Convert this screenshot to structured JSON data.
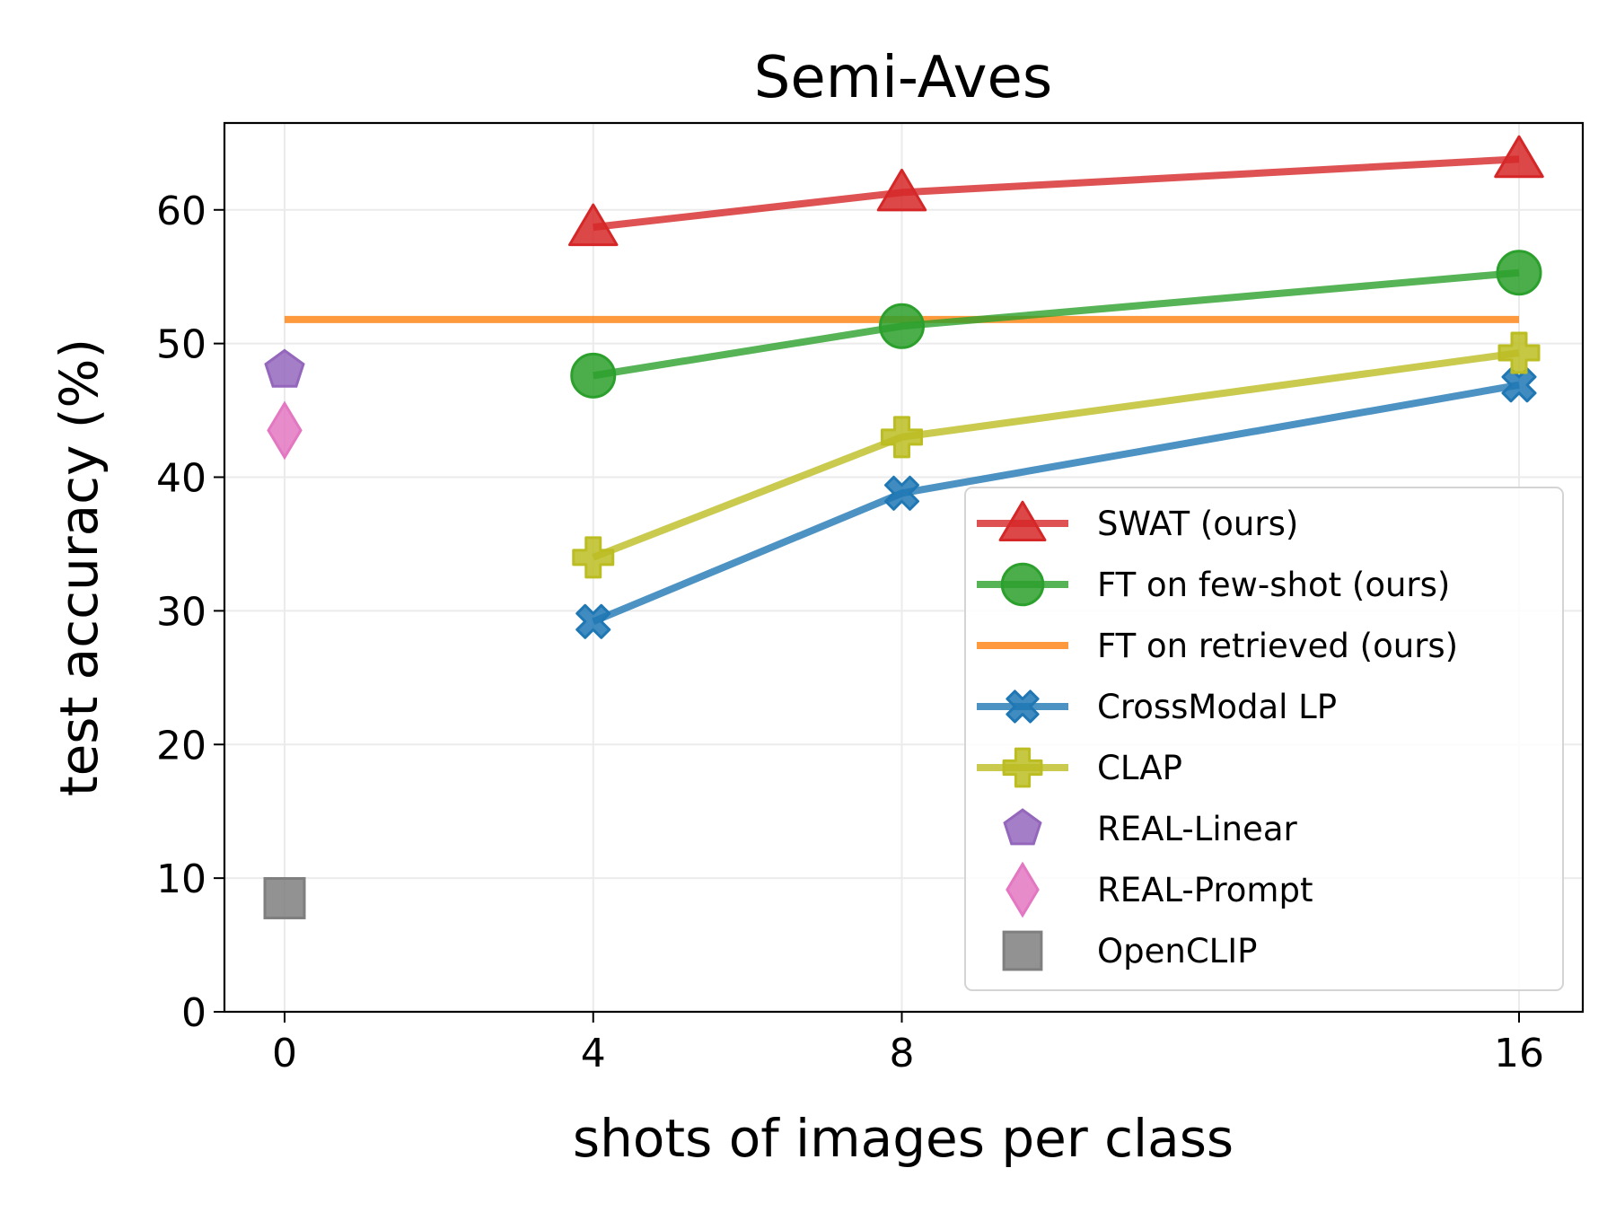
{
  "chart_data": {
    "type": "line",
    "title": "Semi-Aves",
    "xlabel": "shots of images per class",
    "ylabel": "test accuracy (%)",
    "x_ticks": [
      0,
      4,
      8,
      16
    ],
    "x_tick_labels": [
      "0",
      "4",
      "8",
      "16"
    ],
    "y_ticks": [
      0,
      10,
      20,
      30,
      40,
      50,
      60
    ],
    "ylim": [
      0,
      66.5
    ],
    "grid": true,
    "legend_position": "lower-right",
    "series": [
      {
        "name": "SWAT (ours)",
        "color": "#d62728",
        "marker": "triangle",
        "line": true,
        "x": [
          4,
          8,
          16
        ],
        "y": [
          58.7,
          61.3,
          63.8
        ]
      },
      {
        "name": "FT on few-shot (ours)",
        "color": "#2ca02c",
        "marker": "circle",
        "line": true,
        "x": [
          4,
          8,
          16
        ],
        "y": [
          47.6,
          51.3,
          55.3
        ]
      },
      {
        "name": "FT on retrieved (ours)",
        "color": "#ff7f0e",
        "marker": "none",
        "line": true,
        "x": [
          0,
          16
        ],
        "y": [
          51.8,
          51.8
        ]
      },
      {
        "name": "CrossModal LP",
        "color": "#1f77b4",
        "marker": "x",
        "line": true,
        "x": [
          4,
          8,
          16
        ],
        "y": [
          29.2,
          38.8,
          46.9
        ]
      },
      {
        "name": "CLAP",
        "color": "#bcbd22",
        "marker": "plus",
        "line": true,
        "x": [
          4,
          8,
          16
        ],
        "y": [
          34.0,
          43.0,
          49.3
        ]
      },
      {
        "name": "REAL-Linear",
        "color": "#9467bd",
        "marker": "pentagon",
        "line": false,
        "x": [
          0
        ],
        "y": [
          48.0
        ]
      },
      {
        "name": "REAL-Prompt",
        "color": "#e377c2",
        "marker": "diamond",
        "line": false,
        "x": [
          0
        ],
        "y": [
          43.5
        ]
      },
      {
        "name": "OpenCLIP",
        "color": "#7f7f7f",
        "marker": "square",
        "line": false,
        "x": [
          0
        ],
        "y": [
          8.5
        ]
      }
    ]
  }
}
